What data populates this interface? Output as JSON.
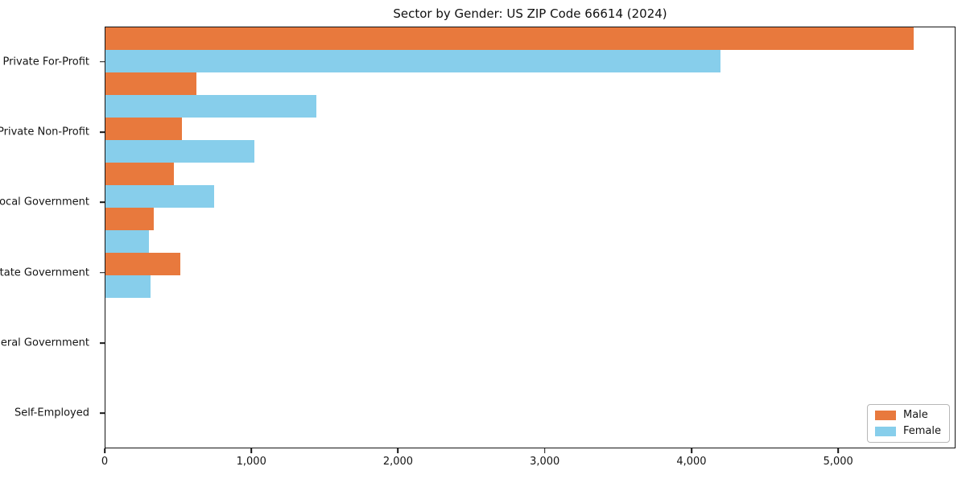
{
  "chart_data": {
    "type": "bar",
    "orientation": "horizontal",
    "title": "Sector by Gender: US ZIP Code 66614 (2024)",
    "categories": [
      "Private For-Profit",
      "Private Non-Profit",
      "Local Government",
      "State Government",
      "Federal Government",
      "Self-Employed"
    ],
    "series": [
      {
        "name": "Male",
        "color": "#e8793d",
        "values": [
          5520,
          620,
          520,
          470,
          330,
          510
        ]
      },
      {
        "name": "Female",
        "color": "#87ceeb",
        "values": [
          4200,
          1440,
          1015,
          740,
          295,
          310
        ]
      }
    ],
    "xlabel": "",
    "ylabel": "",
    "xlim": [
      0,
      5800
    ],
    "xticks": [
      0,
      1000,
      2000,
      3000,
      4000,
      5000
    ],
    "xtick_labels": [
      "0",
      "1,000",
      "2,000",
      "3,000",
      "4,000",
      "5,000"
    ],
    "grid": false,
    "legend": {
      "position": "lower right",
      "entries": [
        "Male",
        "Female"
      ]
    }
  },
  "colors": {
    "axis": "#141414",
    "background": "#ffffff",
    "male": "#e8793d",
    "female": "#87ceeb"
  }
}
